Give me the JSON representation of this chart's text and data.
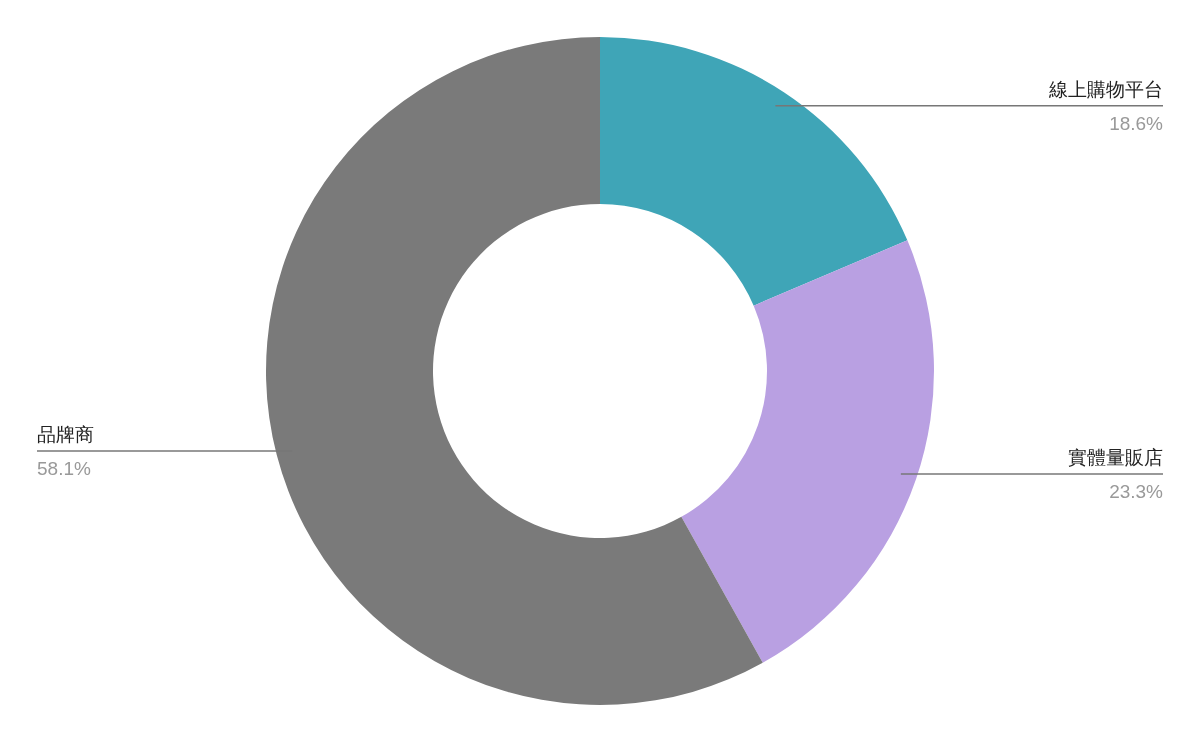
{
  "chart_data": {
    "type": "donut",
    "categories": [
      "線上購物平台",
      "實體量販店",
      "品牌商"
    ],
    "values": [
      18.6,
      23.3,
      58.1
    ],
    "colors": [
      "#3fa5b7",
      "#b9a0e2",
      "#7a7a7a"
    ],
    "value_labels": [
      "18.6%",
      "23.3%",
      "58.1%"
    ]
  }
}
